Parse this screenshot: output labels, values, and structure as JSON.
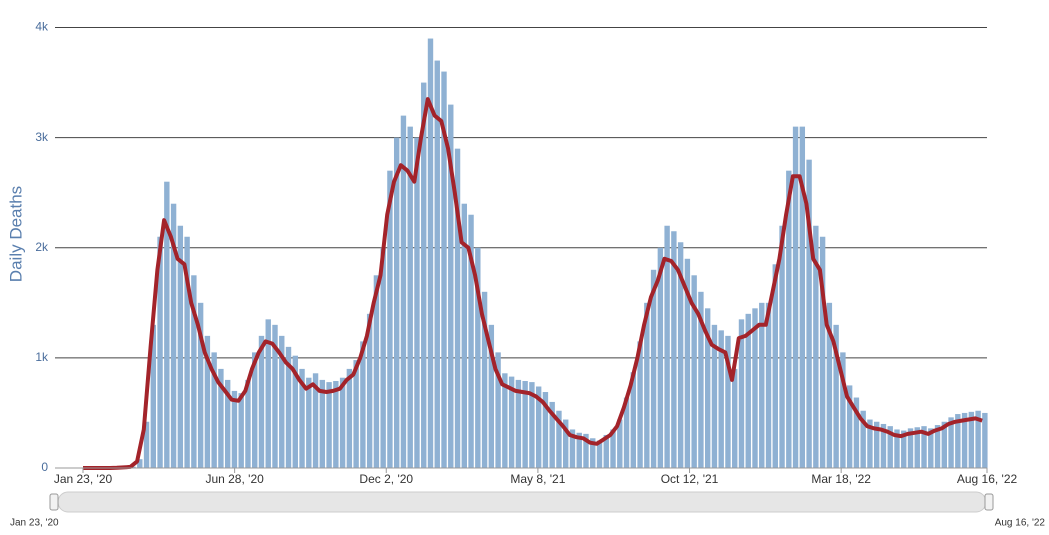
{
  "chart_data": {
    "type": "bar-line",
    "y_axis_label": "Daily Deaths",
    "x": [
      "2020-01-23",
      "2020-01-30",
      "2020-02-06",
      "2020-02-13",
      "2020-02-20",
      "2020-02-27",
      "2020-03-05",
      "2020-03-12",
      "2020-03-19",
      "2020-03-26",
      "2020-04-02",
      "2020-04-09",
      "2020-04-16",
      "2020-04-23",
      "2020-04-30",
      "2020-05-07",
      "2020-05-14",
      "2020-05-21",
      "2020-05-28",
      "2020-06-04",
      "2020-06-11",
      "2020-06-18",
      "2020-06-25",
      "2020-07-02",
      "2020-07-09",
      "2020-07-16",
      "2020-07-23",
      "2020-07-30",
      "2020-08-06",
      "2020-08-13",
      "2020-08-20",
      "2020-08-27",
      "2020-09-03",
      "2020-09-10",
      "2020-09-17",
      "2020-09-24",
      "2020-10-01",
      "2020-10-08",
      "2020-10-15",
      "2020-10-22",
      "2020-10-29",
      "2020-11-05",
      "2020-11-12",
      "2020-11-19",
      "2020-11-26",
      "2020-12-03",
      "2020-12-10",
      "2020-12-17",
      "2020-12-24",
      "2020-12-31",
      "2021-01-07",
      "2021-01-14",
      "2021-01-21",
      "2021-01-28",
      "2021-02-04",
      "2021-02-11",
      "2021-02-18",
      "2021-02-25",
      "2021-03-04",
      "2021-03-11",
      "2021-03-18",
      "2021-03-25",
      "2021-04-01",
      "2021-04-08",
      "2021-04-15",
      "2021-04-22",
      "2021-04-29",
      "2021-05-06",
      "2021-05-13",
      "2021-05-20",
      "2021-05-27",
      "2021-06-03",
      "2021-06-10",
      "2021-06-17",
      "2021-06-24",
      "2021-07-01",
      "2021-07-08",
      "2021-07-15",
      "2021-07-22",
      "2021-07-29",
      "2021-08-05",
      "2021-08-12",
      "2021-08-19",
      "2021-08-26",
      "2021-09-02",
      "2021-09-09",
      "2021-09-16",
      "2021-09-23",
      "2021-09-30",
      "2021-10-07",
      "2021-10-14",
      "2021-10-21",
      "2021-10-28",
      "2021-11-04",
      "2021-11-11",
      "2021-11-18",
      "2021-11-25",
      "2021-12-02",
      "2021-12-09",
      "2021-12-16",
      "2021-12-23",
      "2021-12-30",
      "2022-01-06",
      "2022-01-13",
      "2022-01-20",
      "2022-01-27",
      "2022-02-03",
      "2022-02-10",
      "2022-02-17",
      "2022-02-24",
      "2022-03-03",
      "2022-03-10",
      "2022-03-17",
      "2022-03-24",
      "2022-03-31",
      "2022-04-07",
      "2022-04-14",
      "2022-04-21",
      "2022-04-28",
      "2022-05-05",
      "2022-05-12",
      "2022-05-19",
      "2022-05-26",
      "2022-06-02",
      "2022-06-09",
      "2022-06-16",
      "2022-06-23",
      "2022-06-30",
      "2022-07-07",
      "2022-07-14",
      "2022-07-21",
      "2022-07-28",
      "2022-08-04",
      "2022-08-11"
    ],
    "series": [
      {
        "kind": "bar",
        "color": "#8fb1d3",
        "values": [
          0,
          0,
          0,
          0,
          0,
          2,
          6,
          12,
          80,
          420,
          1300,
          2100,
          2600,
          2400,
          2200,
          2100,
          1750,
          1500,
          1200,
          1050,
          900,
          800,
          700,
          680,
          800,
          1050,
          1200,
          1350,
          1300,
          1200,
          1100,
          1020,
          900,
          820,
          860,
          800,
          780,
          790,
          820,
          900,
          980,
          1150,
          1400,
          1750,
          2000,
          2700,
          3000,
          3200,
          3100,
          3000,
          3500,
          3900,
          3700,
          3600,
          3300,
          2900,
          2400,
          2300,
          2000,
          1600,
          1300,
          1050,
          860,
          830,
          800,
          790,
          780,
          740,
          690,
          600,
          520,
          440,
          350,
          320,
          310,
          270,
          250,
          300,
          350,
          440,
          640,
          870,
          1150,
          1500,
          1800,
          2000,
          2200,
          2150,
          2050,
          1900,
          1750,
          1600,
          1450,
          1300,
          1250,
          1200,
          900,
          1350,
          1400,
          1450,
          1500,
          1500,
          1850,
          2200,
          2700,
          3100,
          3100,
          2800,
          2200,
          2100,
          1500,
          1300,
          1050,
          750,
          640,
          520,
          440,
          420,
          400,
          380,
          350,
          340,
          360,
          370,
          380,
          360,
          390,
          420,
          460,
          490,
          500,
          510,
          520,
          500
        ]
      },
      {
        "kind": "line",
        "color": "#a3232a",
        "values": [
          0,
          0,
          0,
          0,
          0,
          2,
          5,
          10,
          60,
          350,
          1100,
          1800,
          2250,
          2100,
          1900,
          1850,
          1500,
          1300,
          1050,
          900,
          780,
          700,
          620,
          610,
          700,
          900,
          1050,
          1150,
          1130,
          1050,
          960,
          900,
          800,
          720,
          760,
          700,
          690,
          700,
          720,
          800,
          850,
          1000,
          1200,
          1500,
          1750,
          2300,
          2600,
          2750,
          2700,
          2600,
          3000,
          3350,
          3200,
          3150,
          2900,
          2500,
          2050,
          2000,
          1750,
          1400,
          1150,
          900,
          760,
          730,
          700,
          690,
          680,
          650,
          600,
          520,
          450,
          380,
          300,
          280,
          270,
          230,
          220,
          260,
          300,
          380,
          550,
          750,
          1000,
          1300,
          1550,
          1700,
          1900,
          1880,
          1800,
          1650,
          1500,
          1400,
          1250,
          1120,
          1080,
          1050,
          800,
          1180,
          1200,
          1250,
          1300,
          1300,
          1600,
          1900,
          2300,
          2650,
          2650,
          2400,
          1900,
          1800,
          1300,
          1150,
          900,
          650,
          550,
          450,
          380,
          360,
          350,
          330,
          300,
          290,
          310,
          320,
          330,
          310,
          340,
          360,
          400,
          420,
          430,
          440,
          450,
          430
        ]
      }
    ],
    "xlim": [
      "2020-01-23",
      "2022-08-16"
    ],
    "xticks": [
      {
        "value": "2020-01-23",
        "label": "Jan 23, '20"
      },
      {
        "value": "2020-06-28",
        "label": "Jun 28, '20"
      },
      {
        "value": "2020-12-02",
        "label": "Dec 2, '20"
      },
      {
        "value": "2021-05-08",
        "label": "May 8, '21"
      },
      {
        "value": "2021-10-12",
        "label": "Oct 12, '21"
      },
      {
        "value": "2022-03-18",
        "label": "Mar 18, '22"
      },
      {
        "value": "2022-08-16",
        "label": "Aug 16, '22"
      }
    ],
    "ylim": [
      0,
      4250
    ],
    "yticks": [
      0,
      {
        "value": 1000,
        "label": "1k"
      },
      {
        "value": 2000,
        "label": "2k"
      },
      {
        "value": 3000,
        "label": "3k"
      },
      {
        "value": 4000,
        "label": "4k"
      }
    ],
    "grid": true,
    "navigator": {
      "start": "Jan 23, '20",
      "end": "Aug 16, '22"
    }
  }
}
